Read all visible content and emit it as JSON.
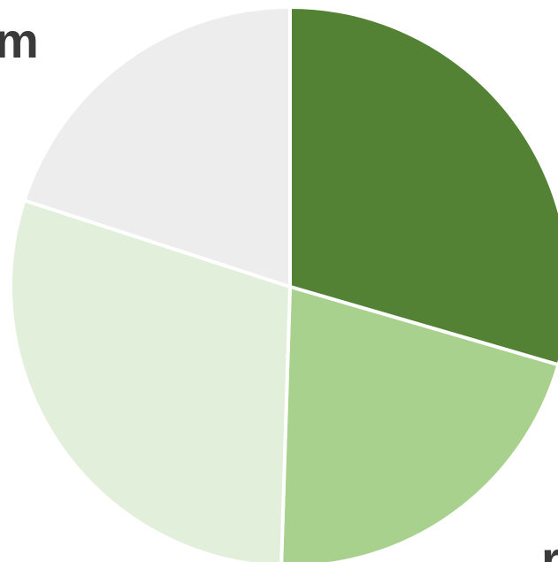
{
  "chart_data": {
    "type": "pie",
    "title": "",
    "slices": [
      {
        "value": 29.5,
        "color": "#548235"
      },
      {
        "value": 21.0,
        "color": "#a9d18e"
      },
      {
        "value": 29.5,
        "color": "#e2efda"
      },
      {
        "value": 20.0,
        "color": "#ededed"
      }
    ],
    "start_angle_deg": 0,
    "direction": "clockwise"
  },
  "fragments": {
    "top_left_text": "m",
    "bottom_right_text": "r"
  },
  "colors": {
    "background": "#ffffff",
    "separator": "#ffffff",
    "text": "#3a3a3a"
  }
}
